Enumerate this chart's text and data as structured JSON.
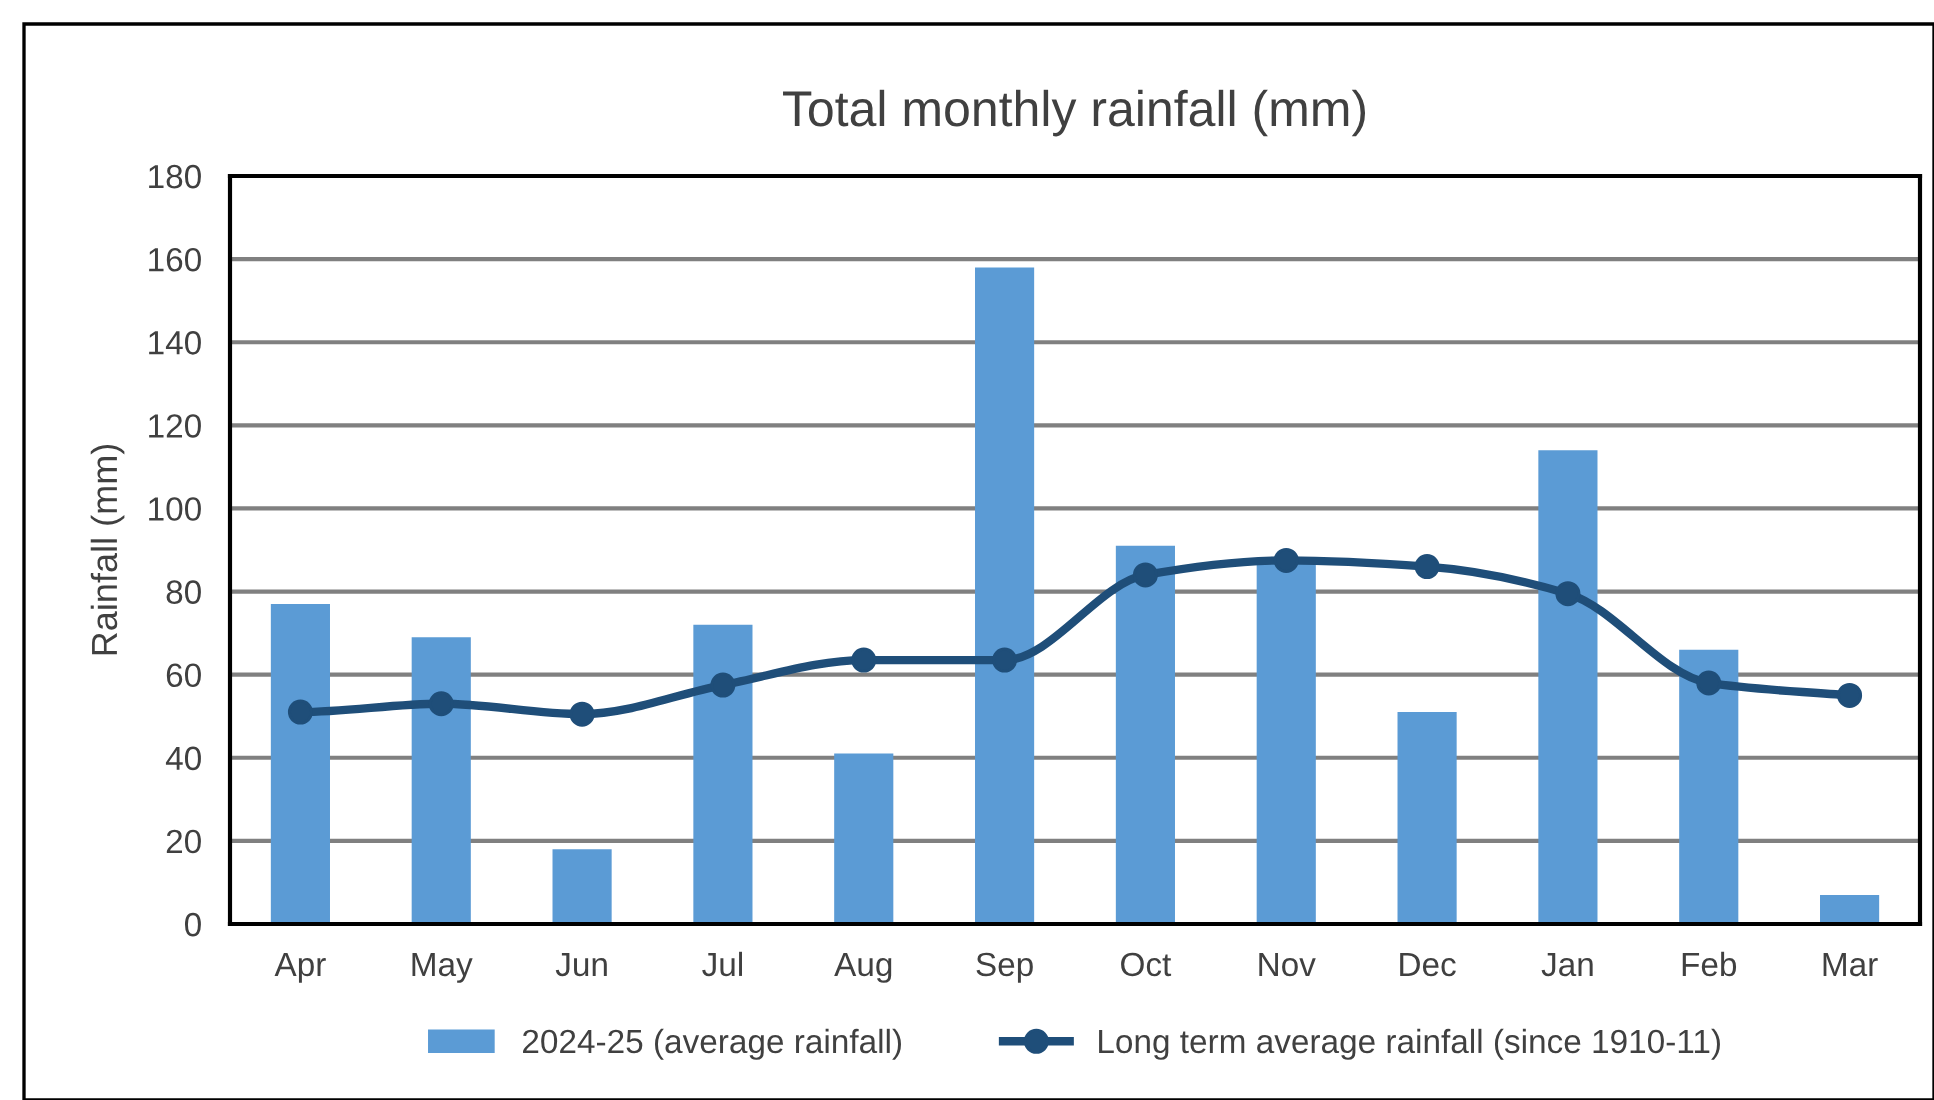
{
  "chart_data": {
    "type": "bar",
    "title": "Total monthly rainfall (mm)",
    "ylabel": "Rainfall (mm)",
    "categories": [
      "Apr",
      "May",
      "Jun",
      "Jul",
      "Aug",
      "Sep",
      "Oct",
      "Nov",
      "Dec",
      "Jan",
      "Feb",
      "Mar"
    ],
    "series": [
      {
        "name": "2024-25 (average rainfall)",
        "type": "bar",
        "color": "#5b9bd5",
        "values": [
          77,
          69,
          18,
          72,
          41,
          158,
          91,
          87,
          51,
          114,
          66,
          7
        ]
      },
      {
        "name": "Long term average rainfall (since 1910-11)",
        "type": "line",
        "color": "#1f4e79",
        "marker": "circle",
        "values": [
          51,
          53,
          50.5,
          57.5,
          63.5,
          63.5,
          84,
          87.5,
          86,
          79.5,
          58,
          55
        ]
      }
    ],
    "ylim": [
      0,
      180
    ],
    "yticks": [
      0,
      20,
      40,
      60,
      80,
      100,
      120,
      140,
      160,
      180
    ],
    "grid": "y",
    "legend": "bottom"
  }
}
